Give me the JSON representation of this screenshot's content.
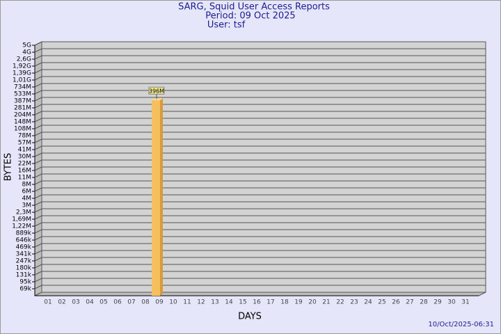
{
  "chart_data": {
    "type": "bar",
    "title": [
      "SARG, Squid User Access Reports",
      "Period: 09 Oct 2025",
      "User: tsf"
    ],
    "x_label": "DAYS",
    "y_label": "BYTES",
    "footer": "10/Oct/2025-06:31",
    "categories": [
      "01",
      "02",
      "03",
      "04",
      "05",
      "06",
      "07",
      "08",
      "09",
      "10",
      "11",
      "12",
      "13",
      "14",
      "15",
      "16",
      "17",
      "18",
      "19",
      "20",
      "21",
      "22",
      "23",
      "24",
      "25",
      "26",
      "27",
      "28",
      "29",
      "30",
      "31"
    ],
    "values": [
      null,
      null,
      null,
      null,
      null,
      null,
      null,
      null,
      396000000,
      null,
      null,
      null,
      null,
      null,
      null,
      null,
      null,
      null,
      null,
      null,
      null,
      null,
      null,
      null,
      null,
      null,
      null,
      null,
      null,
      null,
      null
    ],
    "value_labels": [
      null,
      null,
      null,
      null,
      null,
      null,
      null,
      null,
      "396M",
      null,
      null,
      null,
      null,
      null,
      null,
      null,
      null,
      null,
      null,
      null,
      null,
      null,
      null,
      null,
      null,
      null,
      null,
      null,
      null,
      null,
      null
    ],
    "color": "#f6bf5e",
    "ylim": [
      50000,
      5000000000
    ],
    "yticks": [
      {
        "value": 69000,
        "label": "69k"
      },
      {
        "value": 95000,
        "label": "95k"
      },
      {
        "value": 131000,
        "label": "131k"
      },
      {
        "value": 180000,
        "label": "180k"
      },
      {
        "value": 247000,
        "label": "247k"
      },
      {
        "value": 341000,
        "label": "341k"
      },
      {
        "value": 469000,
        "label": "469k"
      },
      {
        "value": 646000,
        "label": "646k"
      },
      {
        "value": 889000,
        "label": "889k"
      },
      {
        "value": 1220000,
        "label": "1,22M"
      },
      {
        "value": 1690000,
        "label": "1,69M"
      },
      {
        "value": 2300000,
        "label": "2,3M"
      },
      {
        "value": 3000000,
        "label": "3M"
      },
      {
        "value": 4000000,
        "label": "4M"
      },
      {
        "value": 6000000,
        "label": "6M"
      },
      {
        "value": 8000000,
        "label": "8M"
      },
      {
        "value": 11000000,
        "label": "11M"
      },
      {
        "value": 16000000,
        "label": "16M"
      },
      {
        "value": 22000000,
        "label": "22M"
      },
      {
        "value": 30000000,
        "label": "30M"
      },
      {
        "value": 41000000,
        "label": "41M"
      },
      {
        "value": 57000000,
        "label": "57M"
      },
      {
        "value": 78000000,
        "label": "78M"
      },
      {
        "value": 108000000,
        "label": "108M"
      },
      {
        "value": 148000000,
        "label": "148M"
      },
      {
        "value": 204000000,
        "label": "204M"
      },
      {
        "value": 281000000,
        "label": "281M"
      },
      {
        "value": 387000000,
        "label": "387M"
      },
      {
        "value": 533000000,
        "label": "533M"
      },
      {
        "value": 734000000,
        "label": "734M"
      },
      {
        "value": 1010000000,
        "label": "1,01G"
      },
      {
        "value": 1390000000,
        "label": "1,39G"
      },
      {
        "value": 1920000000,
        "label": "1,92G"
      },
      {
        "value": 2600000000,
        "label": "2,6G"
      },
      {
        "value": 4000000000,
        "label": "4G"
      },
      {
        "value": 5000000000,
        "label": "5G"
      }
    ],
    "grid": true
  }
}
